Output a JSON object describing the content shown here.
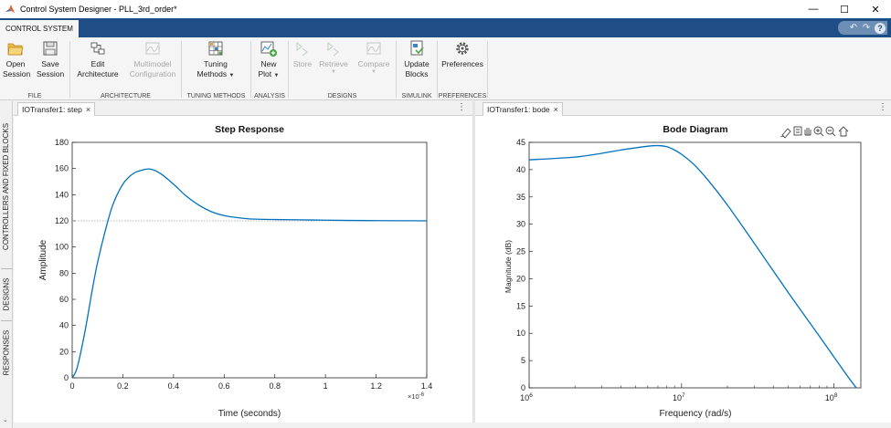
{
  "window": {
    "title": "Control System Designer - PLL_3rd_order*",
    "minimize_glyph": "—",
    "maximize_glyph": "☐",
    "close_glyph": "✕"
  },
  "ribbon_tab": "CONTROL SYSTEM",
  "quick_access": {
    "undo_glyph": "↶",
    "redo_glyph": "↷",
    "help_glyph": "?"
  },
  "toolstrip": {
    "file": {
      "label": "FILE",
      "open_l1": "Open",
      "open_l2": "Session",
      "save_l1": "Save",
      "save_l2": "Session"
    },
    "architecture": {
      "label": "ARCHITECTURE",
      "edit_l1": "Edit",
      "edit_l2": "Architecture",
      "multi_l1": "Multimodel",
      "multi_l2": "Configuration"
    },
    "tuning": {
      "label": "TUNING METHODS",
      "l1": "Tuning",
      "l2": "Methods"
    },
    "analysis": {
      "label": "ANALYSIS",
      "l1": "New",
      "l2": "Plot"
    },
    "designs": {
      "label": "DESIGNS",
      "store": "Store",
      "retrieve": "Retrieve",
      "compare": "Compare"
    },
    "simulink": {
      "label": "SIMULINK",
      "l1": "Update",
      "l2": "Blocks"
    },
    "preferences": {
      "label": "PREFERENCES",
      "l1": "Preferences"
    }
  },
  "side_tabs": [
    "CONTROLLERS AND FIXED BLOCKS",
    "DESIGNS",
    "RESPONSES"
  ],
  "panes": {
    "left_tab": "IOTransfer1: step",
    "right_tab": "IOTransfer1: bode",
    "close_glyph": "×",
    "menu_glyph": "⋮"
  },
  "colors": {
    "accent": "#1f4e87",
    "line": "#0072bd",
    "steady_state": "#a0a0a0"
  },
  "chart_data": [
    {
      "type": "line",
      "title": "Step Response",
      "xlabel": "Time (seconds)",
      "ylabel": "Amplitude",
      "x_exponent_label": "×10",
      "x_exponent": "-6",
      "xlim": [
        0,
        1.4
      ],
      "ylim": [
        0,
        180
      ],
      "xticks": [
        "0",
        "0.2",
        "0.4",
        "0.6",
        "0.8",
        "1",
        "1.2",
        "1.4"
      ],
      "yticks": [
        "0",
        "20",
        "40",
        "60",
        "80",
        "100",
        "120",
        "140",
        "160",
        "180"
      ],
      "steady_state": 120,
      "series": [
        {
          "x": [
            0,
            0.02,
            0.05,
            0.08,
            0.1,
            0.13,
            0.16,
            0.2,
            0.24,
            0.28,
            0.31,
            0.35,
            0.4,
            0.45,
            0.5,
            0.55,
            0.6,
            0.65,
            0.7,
            0.8,
            0.9,
            1.0,
            1.1,
            1.2,
            1.3,
            1.4
          ],
          "y": [
            0,
            8,
            35,
            68,
            88,
            112,
            132,
            148,
            156,
            159,
            159.5,
            156,
            148,
            139,
            132,
            127,
            124,
            122.5,
            121.5,
            121,
            120.8,
            120.5,
            120.3,
            120.2,
            120.1,
            120
          ]
        }
      ]
    },
    {
      "type": "line",
      "title": "Bode Diagram",
      "xlabel": "Frequency (rad/s)",
      "ylabel": "Magnitude (dB)",
      "x_scale": "log",
      "xlim": [
        1000000,
        150000000
      ],
      "ylim": [
        0,
        45
      ],
      "xticks": [
        {
          "value": 1000000,
          "label": "10",
          "exp": "6"
        },
        {
          "value": 10000000,
          "label": "10",
          "exp": "7"
        },
        {
          "value": 100000000,
          "label": "10",
          "exp": "8"
        }
      ],
      "yticks": [
        "0",
        "5",
        "10",
        "15",
        "20",
        "25",
        "30",
        "35",
        "40",
        "45"
      ],
      "series": [
        {
          "x": [
            1000000,
            2000000,
            3000000,
            4000000,
            5000000,
            6000000,
            7000000,
            8000000,
            9000000,
            10000000,
            12000000,
            15000000,
            20000000,
            30000000,
            50000000,
            80000000,
            120000000,
            140000000
          ],
          "y": [
            41.8,
            42.3,
            43.0,
            43.6,
            44.0,
            44.3,
            44.4,
            44.2,
            43.6,
            42.8,
            41.0,
            38.0,
            33.5,
            26.5,
            17.5,
            9.5,
            2.5,
            0
          ]
        }
      ]
    }
  ]
}
